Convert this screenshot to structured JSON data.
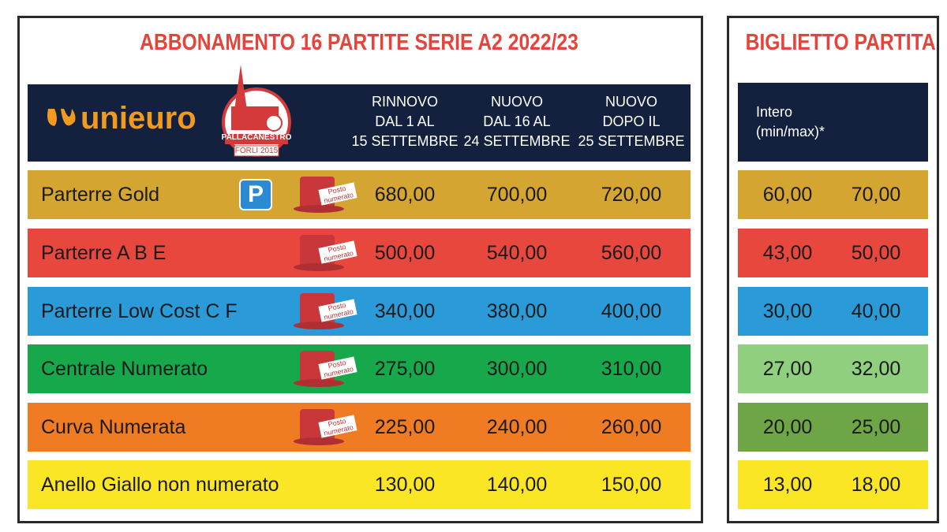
{
  "title": "ABBONAMENTO 16 PARTITE SERIE A2 2022/23",
  "logo": {
    "brand": "unieuro",
    "badge_top": "PALLACANESTRO",
    "badge_bottom": "FORLI 2015"
  },
  "columns": [
    [
      "RINNOVO",
      "DAL 1 AL",
      "15 SETTEMBRE"
    ],
    [
      "NUOVO",
      "DAL 16 AL",
      "24 SETTEMBRE"
    ],
    [
      "NUOVO",
      "DOPO IL",
      "25 SETTEMBRE"
    ]
  ],
  "parking_label": "P",
  "seat_label": "Posto numerato",
  "rows": [
    {
      "name": "Parterre Gold",
      "color": "#d4a530",
      "parking": true,
      "numbered": true,
      "prices": [
        "680,00",
        "700,00",
        "720,00"
      ]
    },
    {
      "name": "Parterre A B E",
      "color": "#e8473d",
      "parking": false,
      "numbered": true,
      "prices": [
        "500,00",
        "540,00",
        "560,00"
      ]
    },
    {
      "name": "Parterre Low Cost C F",
      "color": "#2a9ad8",
      "parking": false,
      "numbered": true,
      "prices": [
        "340,00",
        "380,00",
        "400,00"
      ]
    },
    {
      "name": "Centrale Numerato",
      "color": "#16a84a",
      "parking": false,
      "numbered": true,
      "prices": [
        "275,00",
        "300,00",
        "310,00"
      ]
    },
    {
      "name": "Curva Numerata",
      "color": "#ef7b23",
      "parking": false,
      "numbered": true,
      "prices": [
        "225,00",
        "240,00",
        "260,00"
      ]
    },
    {
      "name": "Anello Giallo non numerato",
      "color": "#fbe625",
      "parking": false,
      "numbered": false,
      "prices": [
        "130,00",
        "140,00",
        "150,00"
      ]
    }
  ],
  "ticket": {
    "title": "BIGLIETTO PARTITA",
    "header": [
      "Intero",
      "(min/max)*"
    ],
    "rows": [
      {
        "color": "#d4a530",
        "min": "60,00",
        "max": "70,00"
      },
      {
        "color": "#e8473d",
        "min": "43,00",
        "max": "50,00"
      },
      {
        "color": "#2a9ad8",
        "min": "30,00",
        "max": "40,00"
      },
      {
        "color": "#8fcf7e",
        "min": "27,00",
        "max": "32,00"
      },
      {
        "color": "#6ea547",
        "min": "20,00",
        "max": "25,00"
      },
      {
        "color": "#fbe625",
        "min": "13,00",
        "max": "18,00"
      }
    ]
  }
}
